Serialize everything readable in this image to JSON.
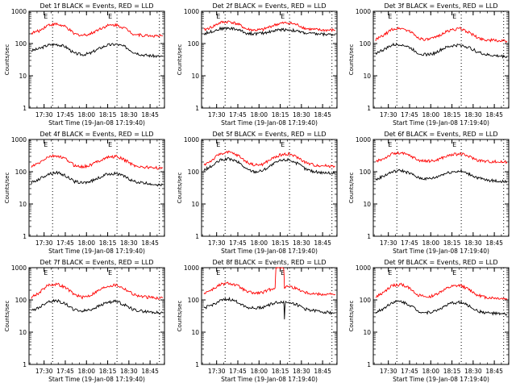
{
  "figure": {
    "x_ticks": [
      "17:30",
      "17:45",
      "18:00",
      "18:15",
      "18:30",
      "18:45"
    ],
    "x_tick_hours": [
      17.5,
      17.75,
      18.0,
      18.25,
      18.5,
      18.75
    ],
    "x_range_hours": [
      17.3222,
      18.92
    ],
    "y_ticks": [
      "1",
      "10",
      "100",
      "1000"
    ],
    "y_tick_values": [
      1,
      10,
      100,
      1000
    ],
    "ylim": [
      1,
      1000
    ],
    "y_scale": "log",
    "dotted_vlines_hours": [
      17.6,
      18.36,
      18.86
    ],
    "E_marker": "E",
    "colors": {
      "events": "#000000",
      "lld": "#ff0000"
    }
  },
  "chart_data": [
    {
      "type": "line",
      "title": "Det 1f BLACK = Events, RED = LLD",
      "xlabel": "Start Time (19-Jan-08 17:19:40)",
      "ylabel": "Counts/sec",
      "x_hours": [
        17.35,
        17.45,
        17.55,
        17.65,
        17.75,
        17.85,
        17.95,
        18.05,
        18.15,
        18.25,
        18.35,
        18.45,
        18.55,
        18.65,
        18.75,
        18.85,
        18.9
      ],
      "series": [
        {
          "name": "Events",
          "color": "#000000",
          "values": [
            60,
            70,
            90,
            95,
            80,
            50,
            45,
            50,
            70,
            90,
            95,
            80,
            55,
            45,
            42,
            40,
            40
          ]
        },
        {
          "name": "LLD",
          "color": "#ff0000",
          "values": [
            210,
            250,
            380,
            400,
            330,
            200,
            180,
            200,
            280,
            360,
            380,
            300,
            200,
            180,
            175,
            170,
            170
          ]
        }
      ]
    },
    {
      "type": "line",
      "title": "Det 2f BLACK = Events, RED = LLD",
      "xlabel": "Start Time (19-Jan-08 17:19:40)",
      "ylabel": "Counts/sec",
      "x_hours": [
        17.35,
        17.45,
        17.55,
        17.65,
        17.75,
        17.85,
        17.95,
        18.05,
        18.15,
        18.25,
        18.35,
        18.45,
        18.55,
        18.65,
        18.75,
        18.85,
        18.9
      ],
      "series": [
        {
          "name": "Events",
          "color": "#000000",
          "values": [
            200,
            240,
            290,
            300,
            270,
            210,
            200,
            210,
            240,
            270,
            270,
            240,
            210,
            200,
            195,
            190,
            190
          ]
        },
        {
          "name": "LLD",
          "color": "#ff0000",
          "values": [
            260,
            330,
            450,
            480,
            400,
            280,
            260,
            270,
            350,
            420,
            440,
            380,
            290,
            270,
            260,
            260,
            260
          ]
        }
      ]
    },
    {
      "type": "line",
      "title": "Det 3f BLACK = Events, RED = LLD",
      "xlabel": "Start Time (19-Jan-08 17:19:40)",
      "ylabel": "Counts/sec",
      "x_hours": [
        17.35,
        17.45,
        17.55,
        17.65,
        17.75,
        17.85,
        17.95,
        18.05,
        18.15,
        18.25,
        18.35,
        18.45,
        18.55,
        18.65,
        18.75,
        18.85,
        18.9
      ],
      "series": [
        {
          "name": "Events",
          "color": "#000000",
          "values": [
            50,
            65,
            90,
            95,
            75,
            50,
            45,
            50,
            70,
            85,
            90,
            75,
            55,
            45,
            42,
            40,
            40
          ]
        },
        {
          "name": "LLD",
          "color": "#ff0000",
          "values": [
            130,
            180,
            280,
            300,
            240,
            150,
            130,
            150,
            210,
            270,
            290,
            220,
            150,
            130,
            125,
            120,
            120
          ]
        }
      ]
    },
    {
      "type": "line",
      "title": "Det 4f BLACK = Events, RED = LLD",
      "xlabel": "Start Time (19-Jan-08 17:19:40)",
      "ylabel": "Counts/sec",
      "x_hours": [
        17.35,
        17.45,
        17.55,
        17.65,
        17.75,
        17.85,
        17.95,
        18.05,
        18.15,
        18.25,
        18.35,
        18.45,
        18.55,
        18.65,
        18.75,
        18.85,
        18.9
      ],
      "series": [
        {
          "name": "Events",
          "color": "#000000",
          "values": [
            45,
            60,
            85,
            95,
            75,
            50,
            45,
            50,
            65,
            85,
            90,
            70,
            50,
            45,
            42,
            40,
            40
          ]
        },
        {
          "name": "LLD",
          "color": "#ff0000",
          "values": [
            140,
            190,
            290,
            310,
            250,
            160,
            140,
            160,
            220,
            280,
            300,
            230,
            160,
            140,
            135,
            130,
            130
          ]
        }
      ]
    },
    {
      "type": "line",
      "title": "Det 5f BLACK = Events, RED = LLD",
      "xlabel": "Start Time (19-Jan-08 17:19:40)",
      "ylabel": "Counts/sec",
      "x_hours": [
        17.35,
        17.45,
        17.55,
        17.65,
        17.75,
        17.85,
        17.95,
        18.05,
        18.15,
        18.25,
        18.35,
        18.45,
        18.55,
        18.65,
        18.75,
        18.85,
        18.9
      ],
      "series": [
        {
          "name": "Events",
          "color": "#000000",
          "values": [
            110,
            150,
            230,
            250,
            200,
            120,
            100,
            110,
            160,
            220,
            240,
            180,
            120,
            100,
            95,
            90,
            90
          ]
        },
        {
          "name": "LLD",
          "color": "#ff0000",
          "values": [
            160,
            230,
            370,
            400,
            320,
            200,
            160,
            170,
            250,
            330,
            360,
            280,
            190,
            160,
            155,
            150,
            150
          ]
        }
      ]
    },
    {
      "type": "line",
      "title": "Det 6f BLACK = Events, RED = LLD",
      "xlabel": "Start Time (19-Jan-08 17:19:40)",
      "ylabel": "Counts/sec",
      "x_hours": [
        17.35,
        17.45,
        17.55,
        17.65,
        17.75,
        17.85,
        17.95,
        18.05,
        18.15,
        18.25,
        18.35,
        18.45,
        18.55,
        18.65,
        18.75,
        18.85,
        18.9
      ],
      "series": [
        {
          "name": "Events",
          "color": "#000000",
          "values": [
            55,
            75,
            100,
            110,
            90,
            65,
            60,
            65,
            85,
            100,
            105,
            85,
            65,
            55,
            52,
            50,
            50
          ]
        },
        {
          "name": "LLD",
          "color": "#ff0000",
          "values": [
            200,
            260,
            360,
            380,
            320,
            230,
            210,
            220,
            280,
            340,
            360,
            300,
            230,
            210,
            205,
            200,
            200
          ]
        }
      ]
    },
    {
      "type": "line",
      "title": "Det 7f BLACK = Events, RED = LLD",
      "xlabel": "Start Time (19-Jan-08 17:19:40)",
      "ylabel": "Counts/sec",
      "x_hours": [
        17.35,
        17.45,
        17.55,
        17.65,
        17.75,
        17.85,
        17.95,
        18.05,
        18.15,
        18.25,
        18.35,
        18.45,
        18.55,
        18.65,
        18.75,
        18.85,
        18.9
      ],
      "series": [
        {
          "name": "Events",
          "color": "#000000",
          "values": [
            45,
            60,
            90,
            95,
            75,
            50,
            45,
            50,
            65,
            85,
            90,
            70,
            50,
            45,
            42,
            40,
            40
          ]
        },
        {
          "name": "LLD",
          "color": "#ff0000",
          "values": [
            120,
            170,
            290,
            310,
            240,
            150,
            120,
            140,
            200,
            270,
            290,
            220,
            150,
            125,
            120,
            115,
            115
          ]
        }
      ]
    },
    {
      "type": "line",
      "title": "Det 8f BLACK = Events, RED = LLD",
      "xlabel": "Start Time (19-Jan-08 17:19:40)",
      "ylabel": "Counts/sec",
      "x_hours": [
        17.35,
        17.45,
        17.55,
        17.65,
        17.75,
        17.85,
        17.95,
        18.05,
        18.15,
        18.19,
        18.2,
        18.29,
        18.3,
        18.31,
        18.32,
        18.35,
        18.45,
        18.55,
        18.65,
        18.75,
        18.85,
        18.9
      ],
      "series": [
        {
          "name": "Events",
          "color": "#000000",
          "values": [
            55,
            70,
            95,
            105,
            85,
            60,
            55,
            60,
            75,
            80,
            82,
            88,
            25,
            85,
            86,
            88,
            70,
            52,
            46,
            43,
            40,
            40
          ]
        },
        {
          "name": "LLD",
          "color": "#ff0000",
          "values": [
            160,
            210,
            300,
            330,
            270,
            180,
            160,
            170,
            220,
            240,
            1000,
            1000,
            240,
            250,
            255,
            270,
            220,
            170,
            155,
            150,
            150,
            150
          ]
        }
      ]
    },
    {
      "type": "line",
      "title": "Det 9f BLACK = Events, RED = LLD",
      "xlabel": "Start Time (19-Jan-08 17:19:40)",
      "ylabel": "Counts/sec",
      "x_hours": [
        17.35,
        17.45,
        17.55,
        17.65,
        17.75,
        17.85,
        17.95,
        18.05,
        18.15,
        18.25,
        18.35,
        18.45,
        18.55,
        18.65,
        18.75,
        18.85,
        18.9
      ],
      "series": [
        {
          "name": "Events",
          "color": "#000000",
          "values": [
            40,
            55,
            85,
            90,
            70,
            45,
            40,
            45,
            60,
            80,
            85,
            65,
            45,
            40,
            38,
            36,
            36
          ]
        },
        {
          "name": "LLD",
          "color": "#ff0000",
          "values": [
            120,
            170,
            280,
            300,
            230,
            140,
            120,
            140,
            200,
            260,
            280,
            210,
            140,
            120,
            115,
            110,
            110
          ]
        }
      ]
    }
  ]
}
